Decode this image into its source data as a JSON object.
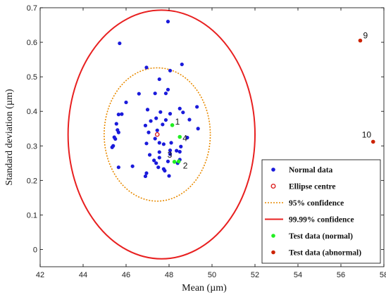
{
  "chart_data": {
    "type": "scatter",
    "xlabel": "Mean (µm)",
    "ylabel": "Standard deviation (µm)",
    "xlim": [
      42,
      58
    ],
    "ylim": [
      -0.05,
      0.7
    ],
    "x_ticks": [
      42,
      44,
      46,
      48,
      50,
      52,
      54,
      56,
      58
    ],
    "x_tick_labels": [
      "42",
      "44",
      "46",
      "48",
      "50",
      "52",
      "54",
      "56",
      "58"
    ],
    "y_ticks": [
      0,
      0.1,
      0.2,
      0.3,
      0.4,
      0.5,
      0.6,
      0.7
    ],
    "y_tick_labels": [
      "0",
      "0.1",
      "0.2",
      "0.3",
      "0.4",
      "0.5",
      "0.6",
      "0.7"
    ],
    "grid": false,
    "legend_position": "bottom-right",
    "legend": [
      {
        "label": "Normal data",
        "marker": "dot",
        "color": "#1a1adb"
      },
      {
        "label": "Ellipse centre",
        "marker": "ring",
        "color": "#dd2222"
      },
      {
        "label": "95% confidence",
        "marker": "dotted-line",
        "color": "#e88a00"
      },
      {
        "label": "99.99% confidence",
        "marker": "line",
        "color": "#e82020"
      },
      {
        "label": "Test data (normal)",
        "marker": "dot",
        "color": "#22ee22"
      },
      {
        "label": "Test data (abnormal)",
        "marker": "dot",
        "color": "#cc2200"
      }
    ],
    "series": [
      {
        "name": "Normal data",
        "color": "#1a1adb",
        "points": [
          [
            47.95,
            0.66
          ],
          [
            45.7,
            0.597
          ],
          [
            46.95,
            0.527
          ],
          [
            48.6,
            0.536
          ],
          [
            48.05,
            0.518
          ],
          [
            47.55,
            0.493
          ],
          [
            47.95,
            0.463
          ],
          [
            47.85,
            0.452
          ],
          [
            46.6,
            0.451
          ],
          [
            47.35,
            0.452
          ],
          [
            46.0,
            0.426
          ],
          [
            47.0,
            0.405
          ],
          [
            45.65,
            0.391
          ],
          [
            45.8,
            0.392
          ],
          [
            49.3,
            0.413
          ],
          [
            48.5,
            0.408
          ],
          [
            48.65,
            0.397
          ],
          [
            47.6,
            0.398
          ],
          [
            48.05,
            0.393
          ],
          [
            47.15,
            0.372
          ],
          [
            45.55,
            0.364
          ],
          [
            47.7,
            0.362
          ],
          [
            46.9,
            0.359
          ],
          [
            47.4,
            0.38
          ],
          [
            47.85,
            0.375
          ],
          [
            48.95,
            0.376
          ],
          [
            45.6,
            0.346
          ],
          [
            45.65,
            0.339
          ],
          [
            47.05,
            0.339
          ],
          [
            47.45,
            0.345
          ],
          [
            49.35,
            0.35
          ],
          [
            45.45,
            0.325
          ],
          [
            45.5,
            0.32
          ],
          [
            47.35,
            0.321
          ],
          [
            47.55,
            0.309
          ],
          [
            47.75,
            0.305
          ],
          [
            48.1,
            0.309
          ],
          [
            48.55,
            0.298
          ],
          [
            48.85,
            0.324
          ],
          [
            45.4,
            0.3
          ],
          [
            45.35,
            0.296
          ],
          [
            46.95,
            0.307
          ],
          [
            48.05,
            0.287
          ],
          [
            48.5,
            0.283
          ],
          [
            47.1,
            0.274
          ],
          [
            47.55,
            0.266
          ],
          [
            47.3,
            0.258
          ],
          [
            47.55,
            0.282
          ],
          [
            48.05,
            0.276
          ],
          [
            48.35,
            0.286
          ],
          [
            47.95,
            0.255
          ],
          [
            45.65,
            0.238
          ],
          [
            46.3,
            0.241
          ],
          [
            47.4,
            0.25
          ],
          [
            47.5,
            0.238
          ],
          [
            47.75,
            0.233
          ],
          [
            47.8,
            0.228
          ],
          [
            46.95,
            0.221
          ],
          [
            46.9,
            0.212
          ],
          [
            48.0,
            0.213
          ],
          [
            48.4,
            0.25
          ],
          [
            48.5,
            0.26
          ]
        ]
      },
      {
        "name": "Ellipse centre",
        "color": "#dd2222",
        "points": [
          [
            47.45,
            0.333
          ]
        ]
      },
      {
        "name": "Test data (normal)",
        "color": "#22ee22",
        "points": [
          [
            48.15,
            0.36
          ],
          [
            48.5,
            0.326
          ],
          [
            48.25,
            0.254
          ],
          [
            48.45,
            0.255
          ]
        ],
        "labels": [
          "1",
          "4",
          "3",
          "2"
        ]
      },
      {
        "name": "Test data (abnormal)",
        "color": "#cc2200",
        "points": [
          [
            56.9,
            0.605
          ],
          [
            57.5,
            0.312
          ]
        ],
        "labels": [
          "9",
          "10"
        ]
      }
    ],
    "ellipses": [
      {
        "name": "95% confidence",
        "cx": 47.45,
        "cy": 0.333,
        "rx": 2.47,
        "ry": 0.193,
        "color": "#e88a00",
        "style": "dotted"
      },
      {
        "name": "99.99% confidence",
        "cx": 47.65,
        "cy": 0.333,
        "rx": 4.35,
        "ry": 0.36,
        "color": "#e82020",
        "style": "solid"
      }
    ]
  }
}
